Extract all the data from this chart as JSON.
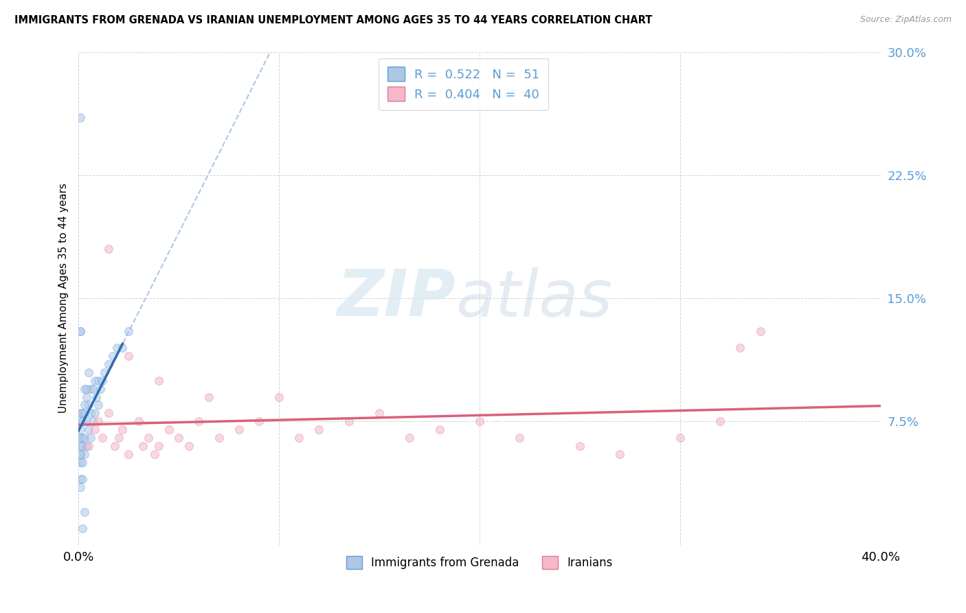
{
  "title": "IMMIGRANTS FROM GRENADA VS IRANIAN UNEMPLOYMENT AMONG AGES 35 TO 44 YEARS CORRELATION CHART",
  "source": "Source: ZipAtlas.com",
  "ylabel": "Unemployment Among Ages 35 to 44 years",
  "xlim": [
    0.0,
    0.4
  ],
  "ylim": [
    0.0,
    0.3
  ],
  "yticks": [
    0.0,
    0.075,
    0.15,
    0.225,
    0.3
  ],
  "ytick_labels": [
    "",
    "7.5%",
    "15.0%",
    "22.5%",
    "30.0%"
  ],
  "xtick_labels": [
    "0.0%",
    "",
    "",
    "",
    "40.0%"
  ],
  "xtick_vals": [
    0.0,
    0.1,
    0.2,
    0.3,
    0.4
  ],
  "background_color": "#ffffff",
  "grenada_color": "#aec6e8",
  "grenada_edge_color": "#5a9fd4",
  "iranian_color": "#f4b8c8",
  "iranian_edge_color": "#e07898",
  "grenada_trend_color": "#2b6cb0",
  "iranian_trend_color": "#d9607a",
  "grenada_dashed_color": "#a0bedd",
  "R_grenada": 0.522,
  "N_grenada": 51,
  "R_iranian": 0.404,
  "N_iranian": 40,
  "grenada_x": [
    0.001,
    0.001,
    0.001,
    0.001,
    0.001,
    0.001,
    0.001,
    0.001,
    0.001,
    0.002,
    0.002,
    0.002,
    0.002,
    0.002,
    0.003,
    0.003,
    0.003,
    0.003,
    0.004,
    0.004,
    0.004,
    0.005,
    0.005,
    0.006,
    0.006,
    0.006,
    0.007,
    0.007,
    0.008,
    0.008,
    0.009,
    0.01,
    0.01,
    0.011,
    0.012,
    0.013,
    0.015,
    0.017,
    0.019,
    0.022,
    0.025,
    0.003,
    0.004,
    0.005,
    0.001,
    0.001,
    0.002,
    0.003,
    0.002,
    0.001,
    0.001
  ],
  "grenada_y": [
    0.04,
    0.05,
    0.055,
    0.06,
    0.065,
    0.07,
    0.075,
    0.08,
    0.035,
    0.05,
    0.06,
    0.065,
    0.075,
    0.08,
    0.055,
    0.065,
    0.08,
    0.095,
    0.06,
    0.075,
    0.09,
    0.07,
    0.085,
    0.065,
    0.08,
    0.095,
    0.075,
    0.095,
    0.08,
    0.1,
    0.09,
    0.085,
    0.1,
    0.095,
    0.1,
    0.105,
    0.11,
    0.115,
    0.12,
    0.12,
    0.13,
    0.085,
    0.095,
    0.105,
    0.13,
    0.26,
    0.01,
    0.02,
    0.04,
    0.13,
    0.055
  ],
  "iranian_x": [
    0.005,
    0.008,
    0.01,
    0.012,
    0.015,
    0.018,
    0.02,
    0.022,
    0.025,
    0.03,
    0.032,
    0.035,
    0.038,
    0.04,
    0.045,
    0.05,
    0.055,
    0.06,
    0.065,
    0.07,
    0.08,
    0.09,
    0.1,
    0.11,
    0.12,
    0.135,
    0.15,
    0.165,
    0.18,
    0.2,
    0.22,
    0.25,
    0.27,
    0.3,
    0.32,
    0.34,
    0.015,
    0.025,
    0.04,
    0.33
  ],
  "iranian_y": [
    0.06,
    0.07,
    0.075,
    0.065,
    0.08,
    0.06,
    0.065,
    0.07,
    0.055,
    0.075,
    0.06,
    0.065,
    0.055,
    0.06,
    0.07,
    0.065,
    0.06,
    0.075,
    0.09,
    0.065,
    0.07,
    0.075,
    0.09,
    0.065,
    0.07,
    0.075,
    0.08,
    0.065,
    0.07,
    0.075,
    0.065,
    0.06,
    0.055,
    0.065,
    0.075,
    0.13,
    0.18,
    0.115,
    0.1,
    0.12
  ],
  "marker_size": 72,
  "alpha_scatter": 0.55,
  "tick_color": "#5b9bd5",
  "grid_color": "#cccccc"
}
